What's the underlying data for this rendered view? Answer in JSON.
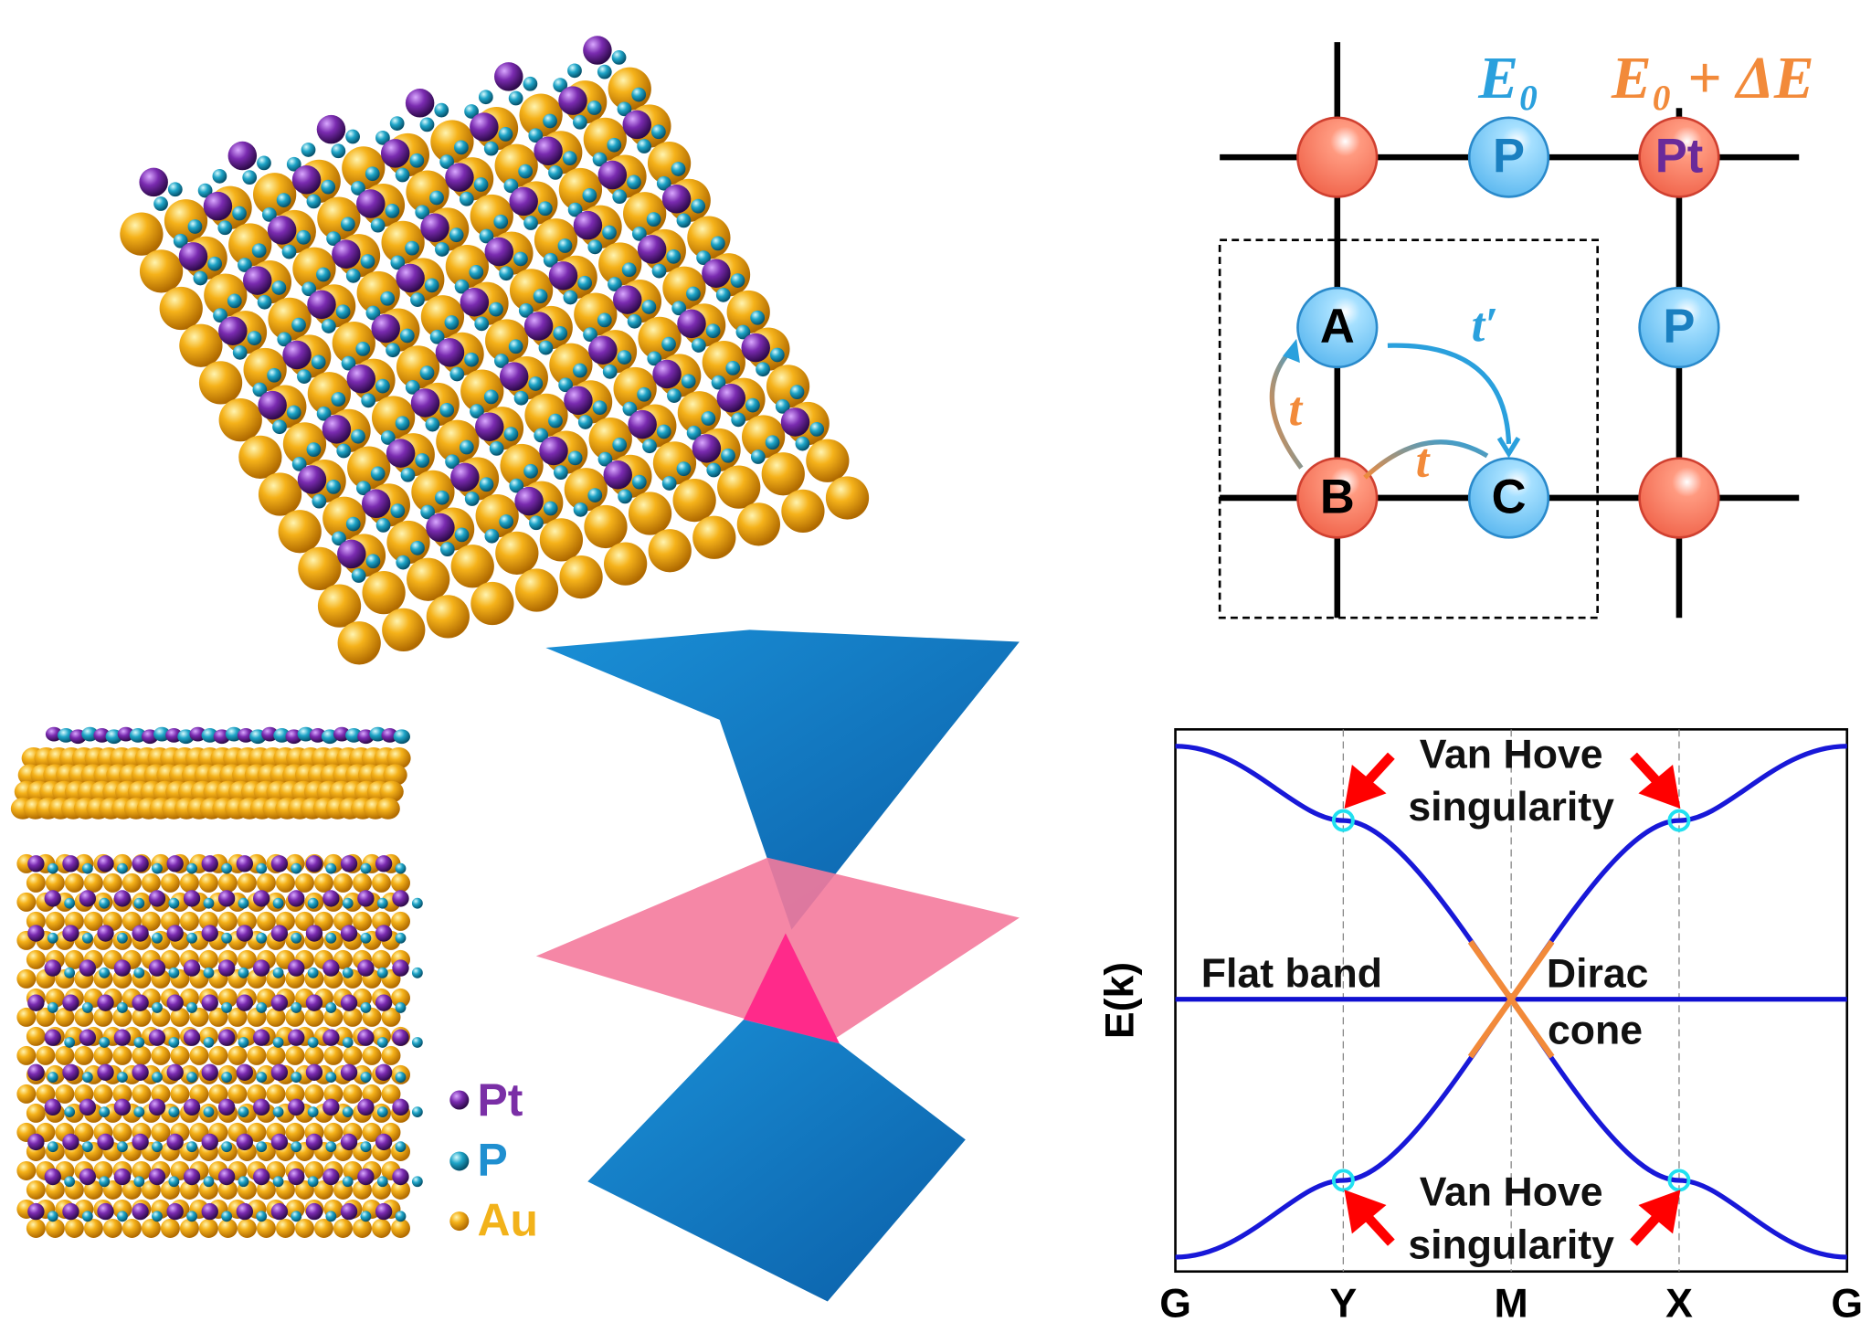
{
  "lattice_diagram": {
    "onsite_labels": [
      "E₀",
      "E₀ + ΔE"
    ],
    "sites": [
      "P",
      "Pt",
      "A",
      "B",
      "C",
      "P"
    ],
    "hoppings": [
      "t′",
      "t",
      "t"
    ]
  },
  "band_diagram": {
    "y_label": "E(k)",
    "k_points": [
      "G",
      "Y",
      "M",
      "X",
      "G"
    ],
    "annotations": [
      [
        "Van Hove",
        "singularity"
      ],
      [
        "Flat band"
      ],
      [
        "Dirac",
        "cone"
      ],
      [
        "Van Hove",
        "singularity"
      ]
    ]
  },
  "legend": [
    "Pt",
    "P",
    "Au"
  ]
}
